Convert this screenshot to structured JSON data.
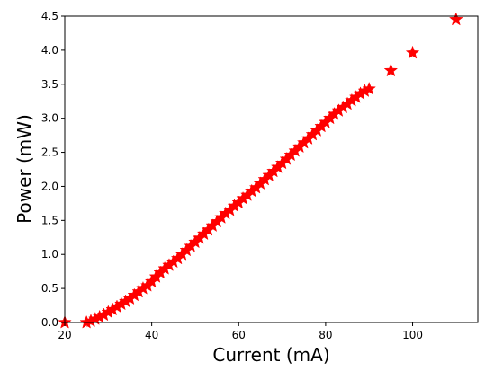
{
  "chart_data": {
    "type": "scatter",
    "xlabel": "Current (mA)",
    "ylabel": "Power (mW)",
    "xlim": [
      20,
      115
    ],
    "ylim": [
      0,
      4.5
    ],
    "xticks": [
      20,
      40,
      60,
      80,
      100
    ],
    "yticks": [
      0.0,
      0.5,
      1.0,
      1.5,
      2.0,
      2.5,
      3.0,
      3.5,
      4.0,
      4.5
    ],
    "grid": false,
    "marker": "star",
    "series_color": "#ff0000",
    "series": [
      {
        "x": [
          20,
          25,
          26,
          27,
          28,
          29,
          30,
          31,
          32,
          33,
          34,
          35,
          36,
          37,
          38,
          39,
          40,
          41,
          42,
          43,
          44,
          45,
          46,
          47,
          48,
          49,
          50,
          51,
          52,
          53,
          54,
          55,
          56,
          57,
          58,
          59,
          60,
          61,
          62,
          63,
          64,
          65,
          66,
          67,
          68,
          69,
          70,
          71,
          72,
          73,
          74,
          75,
          76,
          77,
          78,
          79,
          80,
          81,
          82,
          83,
          84,
          85,
          86,
          87,
          88,
          89,
          90,
          95,
          100,
          110
        ],
        "y": [
          0.0,
          0.0,
          0.02,
          0.05,
          0.08,
          0.11,
          0.15,
          0.19,
          0.23,
          0.27,
          0.31,
          0.35,
          0.4,
          0.45,
          0.5,
          0.54,
          0.6,
          0.67,
          0.73,
          0.79,
          0.84,
          0.89,
          0.94,
          1.0,
          1.06,
          1.12,
          1.18,
          1.24,
          1.3,
          1.36,
          1.42,
          1.48,
          1.54,
          1.6,
          1.65,
          1.71,
          1.76,
          1.82,
          1.87,
          1.93,
          1.98,
          2.04,
          2.1,
          2.16,
          2.22,
          2.28,
          2.34,
          2.4,
          2.46,
          2.52,
          2.58,
          2.64,
          2.7,
          2.76,
          2.82,
          2.88,
          2.94,
          3.0,
          3.06,
          3.11,
          3.16,
          3.21,
          3.26,
          3.31,
          3.36,
          3.4,
          3.43,
          3.7,
          3.96,
          4.45
        ]
      }
    ]
  }
}
